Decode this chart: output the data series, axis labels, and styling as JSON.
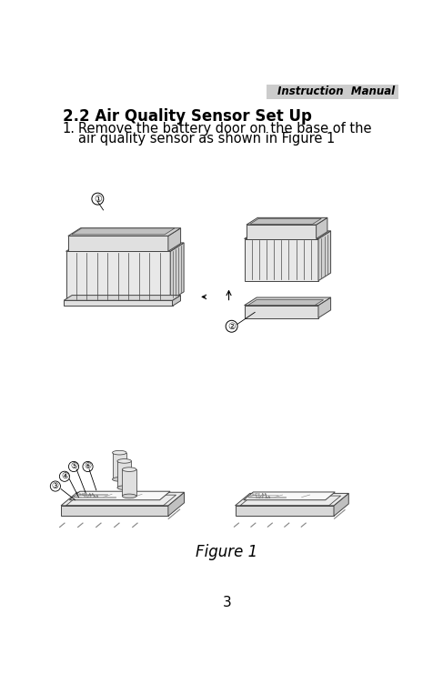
{
  "page_width": 4.87,
  "page_height": 7.63,
  "bg_color": "#ffffff",
  "header_text": "Instruction  Manual",
  "header_bg": "#cccccc",
  "header_fontsize": 8.5,
  "header_fontstyle": "italic",
  "header_fontweight": "bold",
  "section_title": "2.2 Air Quality Sensor Set Up",
  "section_fontsize": 12,
  "step1_line1": "Remove the battery door on the base of the",
  "step1_line2": "air quality sensor as shown in Figure 1",
  "step1_fontsize": 10.5,
  "figure_caption": "Figure 1",
  "figure_caption_fontsize": 12,
  "page_number": "3",
  "page_number_fontsize": 11,
  "text_color": "#000000",
  "line_color": "#444444",
  "fill_light": "#f0f0f0",
  "fill_mid": "#d8d8d8",
  "fill_dark": "#bbbbbb",
  "lw": 0.7
}
